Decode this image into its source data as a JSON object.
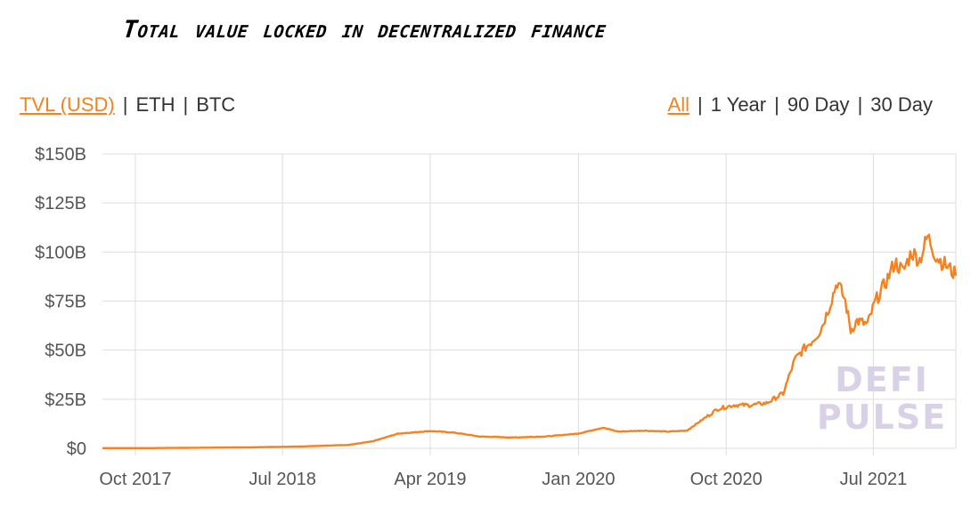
{
  "title": "Total value locked in decentralized finance",
  "metric_tabs": [
    {
      "label": "TVL (USD)",
      "active": true
    },
    {
      "label": "ETH",
      "active": false
    },
    {
      "label": "BTC",
      "active": false
    }
  ],
  "range_tabs": [
    {
      "label": "All",
      "active": true
    },
    {
      "label": "1 Year",
      "active": false
    },
    {
      "label": "90 Day",
      "active": false
    },
    {
      "label": "30 Day",
      "active": false
    }
  ],
  "separator": "|",
  "watermark": [
    "DEFI",
    "PULSE"
  ],
  "colors": {
    "line": "#f58220",
    "grid": "#dddddd",
    "accent": "#f58220"
  },
  "chart_data": {
    "type": "line",
    "title": "Total value locked in decentralized finance",
    "xlabel": "",
    "ylabel": "",
    "y_unit": "USD billions",
    "ylim": [
      0,
      150
    ],
    "yticks": [
      0,
      25,
      50,
      75,
      100,
      125,
      150
    ],
    "ytick_labels": [
      "$0",
      "$25B",
      "$50B",
      "$75B",
      "$100B",
      "$125B",
      "$150B"
    ],
    "xticks": [
      "2017-10-01",
      "2018-07-01",
      "2019-04-01",
      "2020-01-01",
      "2020-10-01",
      "2021-07-01"
    ],
    "xtick_labels": [
      "Oct 2017",
      "Jul 2018",
      "Apr 2019",
      "Jan 2020",
      "Oct 2020",
      "Jul 2021"
    ],
    "xlim": [
      "2017-08-01",
      "2021-12-01"
    ],
    "grid": true,
    "legend": "none",
    "series": [
      {
        "x": [
          "2017-08-01",
          "2017-11-01",
          "2018-02-01",
          "2018-05-01",
          "2018-08-01",
          "2018-11-01",
          "2018-12-15",
          "2019-02-01",
          "2019-04-01",
          "2019-05-15",
          "2019-07-01",
          "2019-09-01",
          "2019-11-01",
          "2020-01-01",
          "2020-02-15",
          "2020-03-15",
          "2020-05-01",
          "2020-06-15",
          "2020-07-20",
          "2020-08-20",
          "2020-09-15",
          "2020-10-15",
          "2020-11-15",
          "2020-12-15",
          "2021-01-15",
          "2021-02-05",
          "2021-02-20",
          "2021-03-10",
          "2021-03-25",
          "2021-04-10",
          "2021-04-25",
          "2021-05-10",
          "2021-05-20",
          "2021-06-01",
          "2021-06-20",
          "2021-07-05",
          "2021-07-25",
          "2021-08-10",
          "2021-08-25",
          "2021-09-10",
          "2021-09-25",
          "2021-10-10",
          "2021-10-25",
          "2021-11-05",
          "2021-11-18",
          "2021-12-01"
        ],
        "y": [
          0.1,
          0.1,
          0.3,
          0.5,
          0.9,
          1.7,
          3.6,
          7.5,
          8.8,
          8.0,
          6.0,
          5.5,
          6.0,
          7.5,
          10.5,
          8.5,
          9.0,
          8.5,
          9.0,
          15.0,
          20.0,
          22.0,
          22.0,
          23.0,
          28.0,
          45.0,
          50.0,
          55.0,
          60.0,
          72.0,
          85.0,
          75.0,
          60.0,
          65.0,
          63.0,
          75.0,
          85.0,
          95.0,
          90.0,
          100.0,
          96.0,
          108.0,
          98.0,
          95.0,
          92.0,
          88.0
        ]
      }
    ]
  }
}
